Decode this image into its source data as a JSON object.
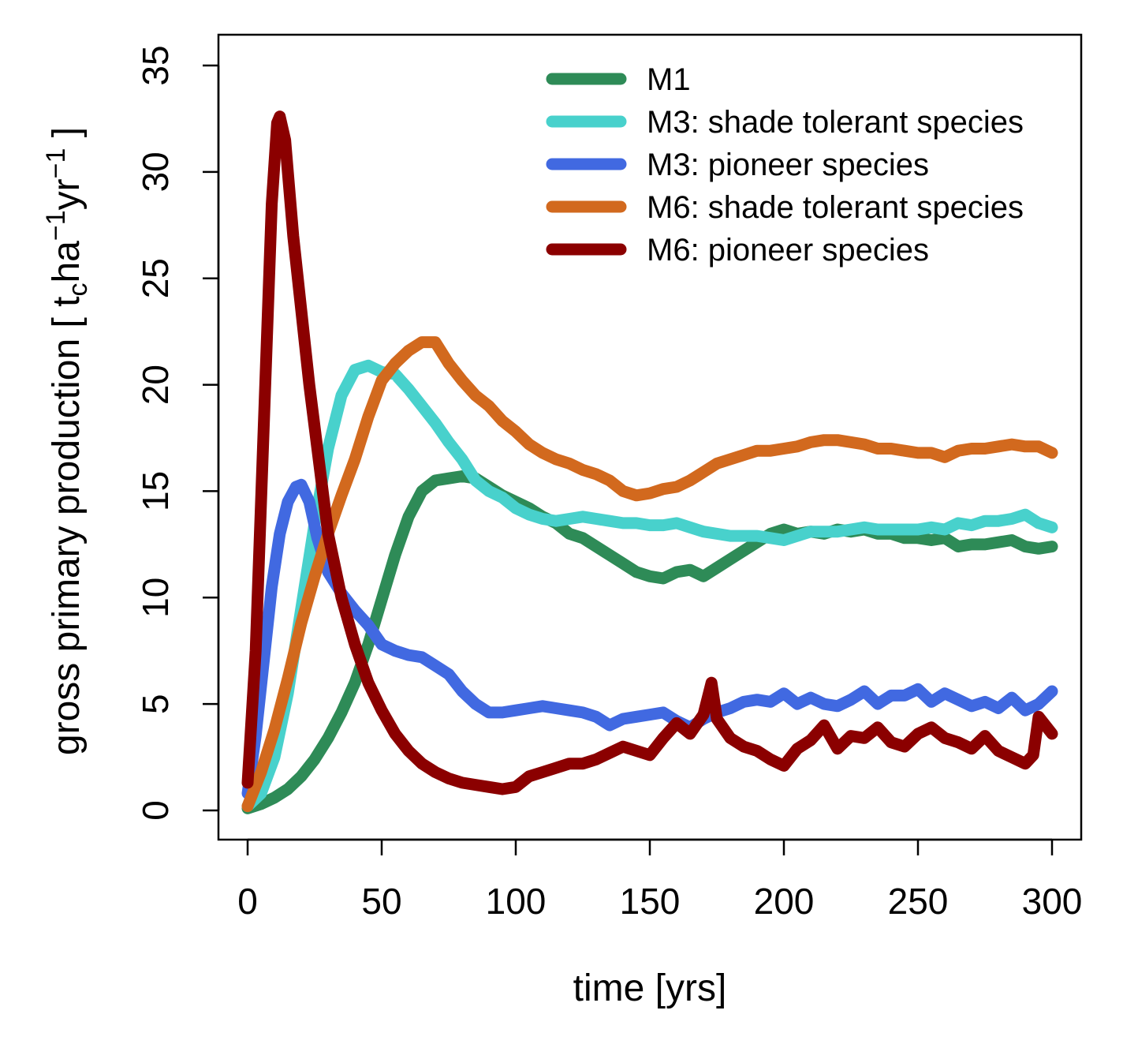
{
  "chart_data": {
    "type": "line",
    "title": "",
    "xlabel": "time [yrs]",
    "ylabel": {
      "prefix": "gross primary production [ t",
      "sub": "c",
      "mid1": "ha",
      "sup1": "−1",
      "mid2": "yr",
      "sup2": "−1",
      "suffix": " ]"
    },
    "xlim": [
      0,
      300
    ],
    "ylim": [
      0,
      35
    ],
    "xticks": [
      0,
      50,
      100,
      150,
      200,
      250,
      300
    ],
    "yticks": [
      0,
      5,
      10,
      15,
      20,
      25,
      30,
      35
    ],
    "grid": false,
    "legend_position": "top-right",
    "series": [
      {
        "name": "M1",
        "color": "#2e8b57",
        "x": [
          0,
          5,
          10,
          15,
          20,
          25,
          30,
          35,
          40,
          45,
          50,
          55,
          60,
          65,
          70,
          75,
          80,
          85,
          90,
          95,
          100,
          105,
          110,
          115,
          120,
          125,
          130,
          135,
          140,
          145,
          150,
          155,
          160,
          165,
          170,
          175,
          180,
          185,
          190,
          195,
          200,
          205,
          210,
          215,
          220,
          225,
          230,
          235,
          240,
          245,
          250,
          255,
          260,
          265,
          270,
          275,
          280,
          285,
          290,
          295,
          300
        ],
        "values": [
          0.1,
          0.3,
          0.6,
          1.0,
          1.6,
          2.4,
          3.4,
          4.6,
          6.0,
          7.8,
          9.9,
          12.0,
          13.8,
          15.0,
          15.5,
          15.6,
          15.7,
          15.6,
          15.2,
          14.8,
          14.5,
          14.2,
          13.8,
          13.5,
          13.0,
          12.8,
          12.4,
          12.0,
          11.6,
          11.2,
          11.0,
          10.9,
          11.2,
          11.3,
          11.0,
          11.4,
          11.8,
          12.2,
          12.6,
          13.0,
          13.2,
          13.0,
          13.1,
          13.0,
          13.2,
          13.1,
          13.2,
          13.0,
          13.0,
          12.8,
          12.8,
          12.7,
          12.8,
          12.4,
          12.5,
          12.5,
          12.6,
          12.7,
          12.4,
          12.3,
          12.4
        ]
      },
      {
        "name": "M3: shade tolerant species",
        "color": "#48d1cc",
        "x": [
          0,
          5,
          10,
          15,
          20,
          25,
          30,
          35,
          40,
          45,
          50,
          55,
          60,
          65,
          70,
          75,
          80,
          85,
          90,
          95,
          100,
          105,
          110,
          115,
          120,
          125,
          130,
          135,
          140,
          145,
          150,
          155,
          160,
          165,
          170,
          175,
          180,
          185,
          190,
          195,
          200,
          205,
          210,
          215,
          220,
          225,
          230,
          235,
          240,
          245,
          250,
          255,
          260,
          265,
          270,
          275,
          280,
          285,
          290,
          295,
          300
        ],
        "values": [
          0.2,
          0.8,
          2.5,
          5.5,
          9.5,
          13.5,
          17.0,
          19.5,
          20.7,
          20.9,
          20.6,
          20.5,
          19.8,
          19.0,
          18.2,
          17.3,
          16.5,
          15.5,
          15.0,
          14.7,
          14.2,
          13.9,
          13.7,
          13.6,
          13.7,
          13.8,
          13.7,
          13.6,
          13.5,
          13.5,
          13.4,
          13.4,
          13.5,
          13.3,
          13.1,
          13.0,
          12.9,
          12.9,
          12.9,
          12.8,
          12.7,
          12.9,
          13.1,
          13.1,
          13.1,
          13.2,
          13.3,
          13.2,
          13.2,
          13.2,
          13.2,
          13.3,
          13.2,
          13.5,
          13.4,
          13.6,
          13.6,
          13.7,
          13.9,
          13.5,
          13.3
        ]
      },
      {
        "name": "M3: pioneer species",
        "color": "#4169e1",
        "x": [
          0,
          3,
          6,
          9,
          12,
          15,
          18,
          20,
          23,
          26,
          30,
          35,
          40,
          45,
          50,
          55,
          60,
          65,
          70,
          75,
          80,
          85,
          90,
          95,
          100,
          105,
          110,
          115,
          120,
          125,
          130,
          135,
          140,
          145,
          150,
          155,
          160,
          165,
          170,
          175,
          180,
          185,
          190,
          195,
          200,
          205,
          210,
          215,
          220,
          225,
          230,
          235,
          240,
          245,
          250,
          255,
          260,
          265,
          270,
          275,
          280,
          285,
          290,
          295,
          300
        ],
        "values": [
          0.8,
          3.5,
          7.0,
          10.5,
          13.0,
          14.5,
          15.2,
          15.3,
          14.5,
          12.8,
          11.2,
          10.2,
          9.4,
          8.7,
          7.8,
          7.5,
          7.3,
          7.2,
          6.8,
          6.4,
          5.6,
          5.0,
          4.6,
          4.6,
          4.7,
          4.8,
          4.9,
          4.8,
          4.7,
          4.6,
          4.4,
          4.0,
          4.3,
          4.4,
          4.5,
          4.6,
          4.2,
          3.9,
          4.3,
          4.6,
          4.8,
          5.1,
          5.2,
          5.1,
          5.5,
          5.0,
          5.3,
          5.0,
          4.9,
          5.2,
          5.6,
          5.0,
          5.4,
          5.4,
          5.7,
          5.1,
          5.5,
          5.2,
          4.9,
          5.1,
          4.8,
          5.3,
          4.7,
          5.0,
          5.6
        ]
      },
      {
        "name": "M6: shade tolerant species",
        "color": "#d2691e",
        "x": [
          0,
          5,
          10,
          15,
          20,
          25,
          30,
          35,
          40,
          45,
          50,
          55,
          60,
          65,
          70,
          75,
          80,
          85,
          90,
          95,
          100,
          105,
          110,
          115,
          120,
          125,
          130,
          135,
          140,
          145,
          150,
          155,
          160,
          165,
          170,
          175,
          180,
          185,
          190,
          195,
          200,
          205,
          210,
          215,
          220,
          225,
          230,
          235,
          240,
          245,
          250,
          255,
          260,
          265,
          270,
          275,
          280,
          285,
          290,
          295,
          300
        ],
        "values": [
          0.2,
          1.8,
          3.8,
          6.2,
          8.8,
          11.0,
          13.0,
          14.8,
          16.5,
          18.5,
          20.2,
          21.0,
          21.6,
          22.0,
          22.0,
          21.0,
          20.2,
          19.5,
          19.0,
          18.3,
          17.8,
          17.2,
          16.8,
          16.5,
          16.3,
          16.0,
          15.8,
          15.5,
          15.0,
          14.8,
          14.9,
          15.1,
          15.2,
          15.5,
          15.9,
          16.3,
          16.5,
          16.7,
          16.9,
          16.9,
          17.0,
          17.1,
          17.3,
          17.4,
          17.4,
          17.3,
          17.2,
          17.0,
          17.0,
          16.9,
          16.8,
          16.8,
          16.6,
          16.9,
          17.0,
          17.0,
          17.1,
          17.2,
          17.1,
          17.1,
          16.8
        ]
      },
      {
        "name": "M6: pioneer species",
        "color": "#8b0000",
        "x": [
          0,
          3,
          6,
          9,
          11,
          12,
          14,
          17,
          20,
          23,
          26,
          30,
          35,
          40,
          45,
          50,
          55,
          60,
          65,
          70,
          75,
          80,
          85,
          90,
          95,
          100,
          105,
          110,
          115,
          120,
          125,
          130,
          135,
          140,
          145,
          150,
          155,
          160,
          165,
          170,
          173,
          175,
          180,
          185,
          190,
          195,
          200,
          205,
          210,
          215,
          220,
          225,
          230,
          235,
          240,
          245,
          250,
          255,
          260,
          265,
          270,
          275,
          280,
          285,
          290,
          293,
          295,
          300
        ],
        "values": [
          1.3,
          7.5,
          18.0,
          28.5,
          32.3,
          32.6,
          31.5,
          27.0,
          23.5,
          20.0,
          17.0,
          13.0,
          10.0,
          7.8,
          6.0,
          4.7,
          3.6,
          2.8,
          2.2,
          1.8,
          1.5,
          1.3,
          1.2,
          1.1,
          1.0,
          1.1,
          1.6,
          1.8,
          2.0,
          2.2,
          2.2,
          2.4,
          2.7,
          3.0,
          2.8,
          2.6,
          3.4,
          4.1,
          3.6,
          4.5,
          6.0,
          4.3,
          3.4,
          3.0,
          2.8,
          2.4,
          2.1,
          2.9,
          3.3,
          4.0,
          2.9,
          3.5,
          3.4,
          3.9,
          3.2,
          3.0,
          3.6,
          3.9,
          3.4,
          3.2,
          2.9,
          3.5,
          2.8,
          2.5,
          2.2,
          2.6,
          4.4,
          3.6
        ]
      }
    ]
  }
}
